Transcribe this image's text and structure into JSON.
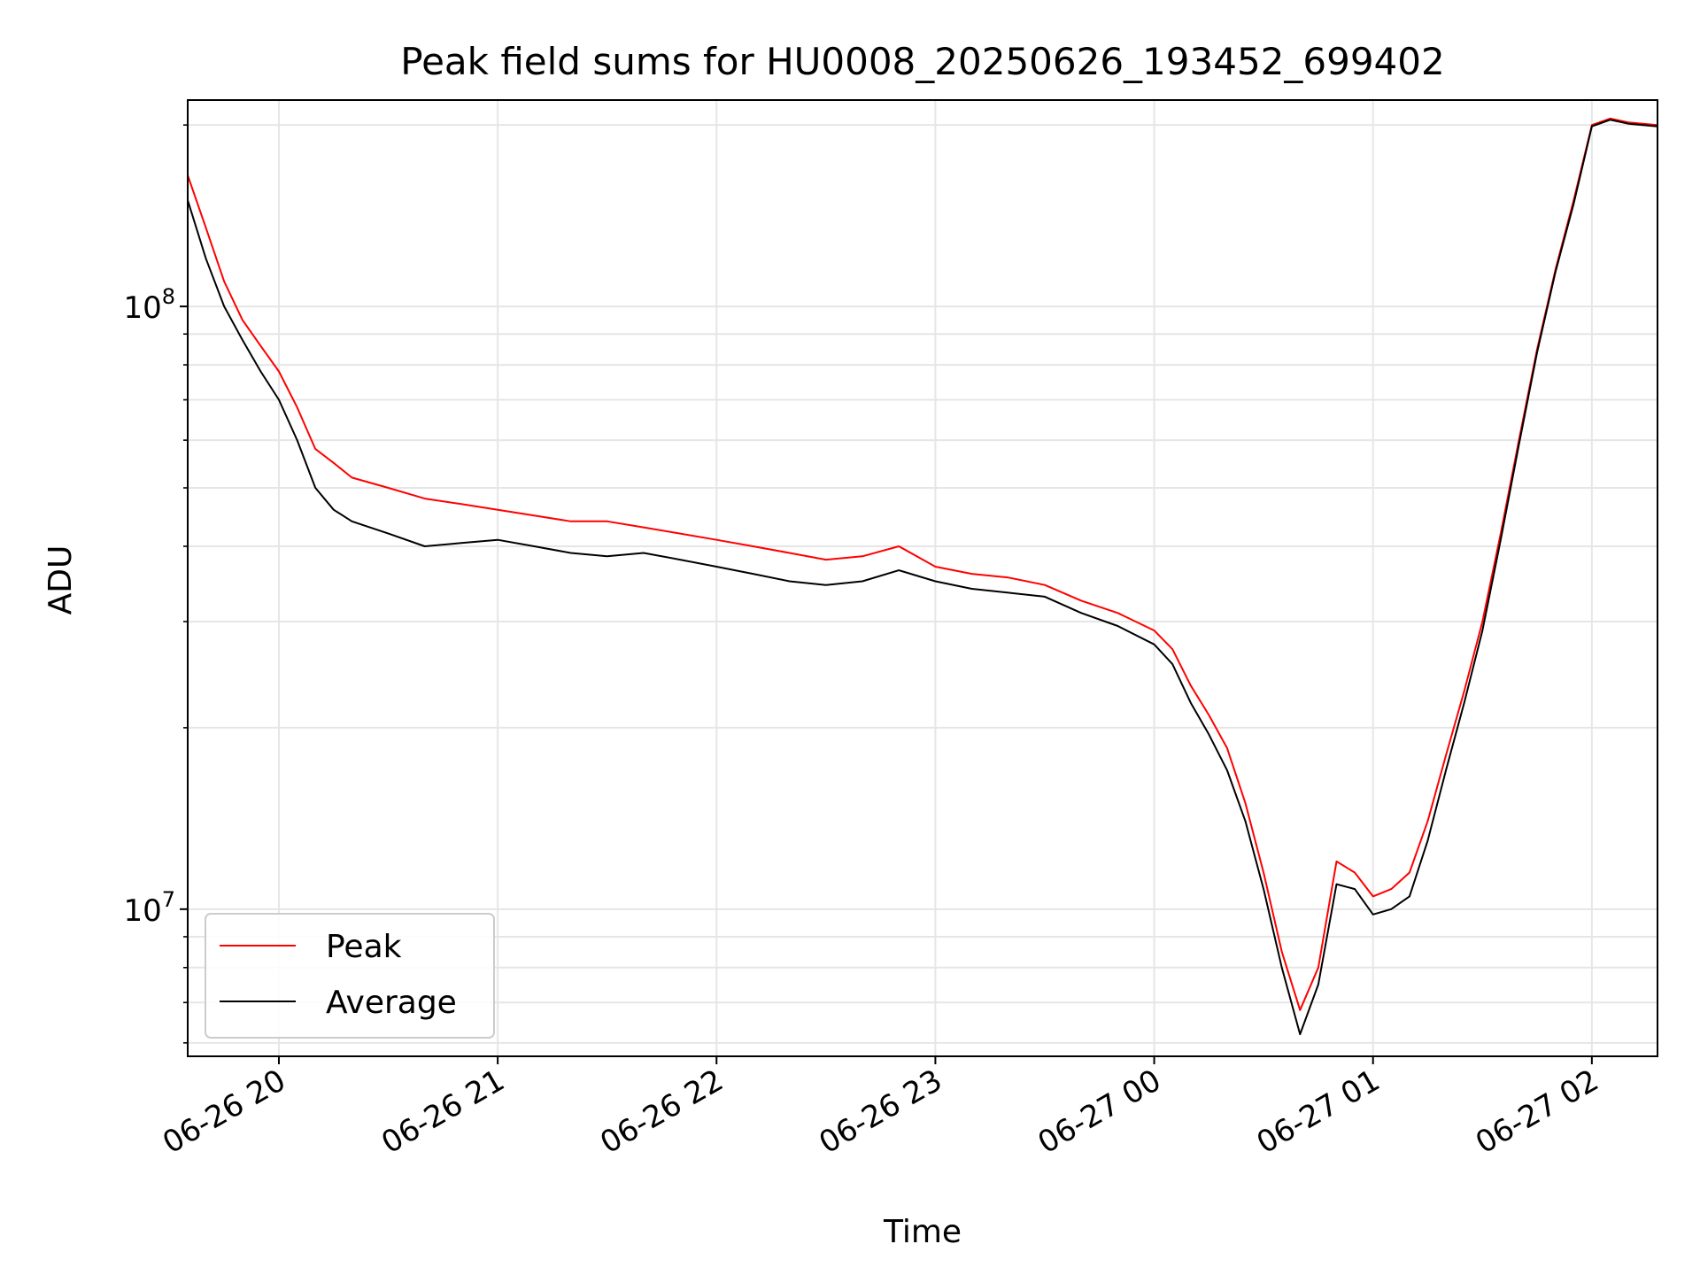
{
  "chart_data": {
    "type": "line",
    "title": "Peak field sums for HU0008_20250626_193452_699402",
    "xlabel": "Time",
    "ylabel": "ADU",
    "yscale": "log",
    "x_unit": "datetime",
    "xlim": [
      "2025-06-26 19:35",
      "2025-06-27 02:18"
    ],
    "ylim": [
      5700000,
      220000000
    ],
    "grid": true,
    "legend_position": "lower-left",
    "x_ticks": [
      {
        "t": "2025-06-26 20:00",
        "label": "06-26 20"
      },
      {
        "t": "2025-06-26 21:00",
        "label": "06-26 21"
      },
      {
        "t": "2025-06-26 22:00",
        "label": "06-26 22"
      },
      {
        "t": "2025-06-26 23:00",
        "label": "06-26 23"
      },
      {
        "t": "2025-06-27 00:00",
        "label": "06-27 00"
      },
      {
        "t": "2025-06-27 01:00",
        "label": "06-27 01"
      },
      {
        "t": "2025-06-27 02:00",
        "label": "06-27 02"
      }
    ],
    "y_ticks": [
      {
        "value": 10000000,
        "base": "10",
        "exp": "7"
      },
      {
        "value": 100000000,
        "base": "10",
        "exp": "8"
      }
    ],
    "series": [
      {
        "name": "Peak",
        "color": "#ff0000",
        "x": [
          "2025-06-26 19:35",
          "2025-06-26 19:40",
          "2025-06-26 19:45",
          "2025-06-26 19:50",
          "2025-06-26 19:55",
          "2025-06-26 20:00",
          "2025-06-26 20:05",
          "2025-06-26 20:10",
          "2025-06-26 20:15",
          "2025-06-26 20:20",
          "2025-06-26 20:30",
          "2025-06-26 20:40",
          "2025-06-26 20:50",
          "2025-06-26 21:00",
          "2025-06-26 21:10",
          "2025-06-26 21:20",
          "2025-06-26 21:30",
          "2025-06-26 21:40",
          "2025-06-26 21:50",
          "2025-06-26 22:00",
          "2025-06-26 22:10",
          "2025-06-26 22:20",
          "2025-06-26 22:30",
          "2025-06-26 22:40",
          "2025-06-26 22:50",
          "2025-06-26 23:00",
          "2025-06-26 23:10",
          "2025-06-26 23:20",
          "2025-06-26 23:30",
          "2025-06-26 23:40",
          "2025-06-26 23:50",
          "2025-06-27 00:00",
          "2025-06-27 00:05",
          "2025-06-27 00:10",
          "2025-06-27 00:15",
          "2025-06-27 00:20",
          "2025-06-27 00:25",
          "2025-06-27 00:30",
          "2025-06-27 00:35",
          "2025-06-27 00:40",
          "2025-06-27 00:45",
          "2025-06-27 00:50",
          "2025-06-27 00:55",
          "2025-06-27 01:00",
          "2025-06-27 01:05",
          "2025-06-27 01:10",
          "2025-06-27 01:15",
          "2025-06-27 01:20",
          "2025-06-27 01:25",
          "2025-06-27 01:30",
          "2025-06-27 01:35",
          "2025-06-27 01:40",
          "2025-06-27 01:45",
          "2025-06-27 01:50",
          "2025-06-27 01:55",
          "2025-06-27 02:00",
          "2025-06-27 02:05",
          "2025-06-27 02:10",
          "2025-06-27 02:18"
        ],
        "y": [
          165000000,
          135000000,
          110000000,
          95000000,
          86000000,
          78000000,
          68000000,
          58000000,
          55000000,
          52000000,
          50000000,
          48000000,
          47000000,
          46000000,
          45000000,
          44000000,
          44000000,
          43000000,
          42000000,
          41000000,
          40000000,
          39000000,
          38000000,
          38500000,
          40000000,
          37000000,
          36000000,
          35500000,
          34500000,
          32500000,
          31000000,
          29000000,
          27000000,
          23500000,
          21000000,
          18500000,
          15000000,
          11500000,
          8500000,
          6800000,
          8000000,
          12000000,
          11500000,
          10500000,
          10800000,
          11500000,
          14000000,
          18000000,
          23000000,
          30000000,
          42000000,
          60000000,
          85000000,
          115000000,
          150000000,
          200000000,
          205000000,
          202000000,
          200000000
        ]
      },
      {
        "name": "Average",
        "color": "#000000",
        "x": [
          "2025-06-26 19:35",
          "2025-06-26 19:40",
          "2025-06-26 19:45",
          "2025-06-26 19:50",
          "2025-06-26 19:55",
          "2025-06-26 20:00",
          "2025-06-26 20:05",
          "2025-06-26 20:10",
          "2025-06-26 20:15",
          "2025-06-26 20:20",
          "2025-06-26 20:30",
          "2025-06-26 20:40",
          "2025-06-26 20:50",
          "2025-06-26 21:00",
          "2025-06-26 21:10",
          "2025-06-26 21:20",
          "2025-06-26 21:30",
          "2025-06-26 21:40",
          "2025-06-26 21:50",
          "2025-06-26 22:00",
          "2025-06-26 22:10",
          "2025-06-26 22:20",
          "2025-06-26 22:30",
          "2025-06-26 22:40",
          "2025-06-26 22:50",
          "2025-06-26 23:00",
          "2025-06-26 23:10",
          "2025-06-26 23:20",
          "2025-06-26 23:30",
          "2025-06-26 23:40",
          "2025-06-26 23:50",
          "2025-06-27 00:00",
          "2025-06-27 00:05",
          "2025-06-27 00:10",
          "2025-06-27 00:15",
          "2025-06-27 00:20",
          "2025-06-27 00:25",
          "2025-06-27 00:30",
          "2025-06-27 00:35",
          "2025-06-27 00:40",
          "2025-06-27 00:45",
          "2025-06-27 00:50",
          "2025-06-27 00:55",
          "2025-06-27 01:00",
          "2025-06-27 01:05",
          "2025-06-27 01:10",
          "2025-06-27 01:15",
          "2025-06-27 01:20",
          "2025-06-27 01:25",
          "2025-06-27 01:30",
          "2025-06-27 01:35",
          "2025-06-27 01:40",
          "2025-06-27 01:45",
          "2025-06-27 01:50",
          "2025-06-27 01:55",
          "2025-06-27 02:00",
          "2025-06-27 02:05",
          "2025-06-27 02:10",
          "2025-06-27 02:18"
        ],
        "y": [
          150000000,
          120000000,
          100000000,
          88000000,
          78000000,
          70000000,
          60000000,
          50000000,
          46000000,
          44000000,
          42000000,
          40000000,
          40500000,
          41000000,
          40000000,
          39000000,
          38500000,
          39000000,
          38000000,
          37000000,
          36000000,
          35000000,
          34500000,
          35000000,
          36500000,
          35000000,
          34000000,
          33500000,
          33000000,
          31000000,
          29500000,
          27500000,
          25500000,
          22000000,
          19500000,
          17000000,
          14000000,
          10800000,
          8000000,
          6200000,
          7500000,
          11000000,
          10800000,
          9800000,
          10000000,
          10500000,
          13000000,
          17000000,
          22000000,
          29000000,
          41000000,
          59000000,
          84000000,
          114000000,
          148000000,
          199000000,
          204000000,
          201000000,
          199000000
        ]
      }
    ]
  }
}
